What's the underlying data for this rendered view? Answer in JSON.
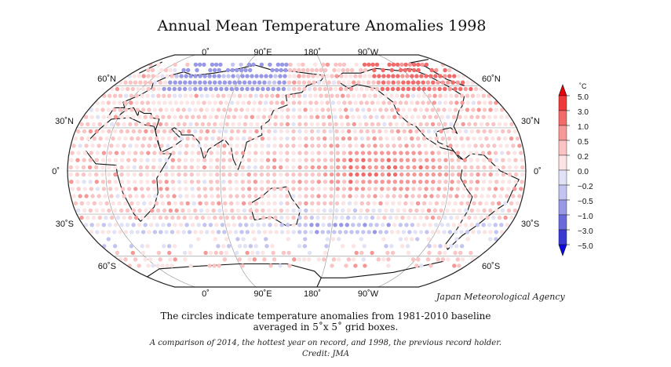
{
  "title": "Annual Mean Temperature Anomalies 1998",
  "map": {
    "projection": "Robinson",
    "top_longitude_labels": [
      "0˚",
      "90˚E",
      "180˚",
      "90˚W"
    ],
    "bottom_longitude_labels": [
      "0˚",
      "90˚E",
      "180˚",
      "90˚W"
    ],
    "left_latitude_labels": [
      "60˚N",
      "30˚N",
      "0˚",
      "30˚S",
      "60˚S"
    ],
    "right_latitude_labels": [
      "60˚N",
      "30˚N",
      "0˚",
      "30˚S",
      "60˚S"
    ],
    "grid": true,
    "legend_placement": "right"
  },
  "legend": {
    "unit": "˚C",
    "labels": [
      "5.0",
      "3.0",
      "1.0",
      "0.5",
      "0.2",
      "0.0",
      "−0.2",
      "−0.5",
      "−1.0",
      "−3.0",
      "−5.0"
    ],
    "colors": [
      "#e8000a",
      "#ee3a3a",
      "#f26a6a",
      "#f69898",
      "#fac4c4",
      "#fce4e4",
      "#e2e2f6",
      "#c4c4f0",
      "#9898e6",
      "#6a6adc",
      "#3a3ad2",
      "#0a0ae0"
    ]
  },
  "agency": "Japan Meteorological Agency",
  "caption": {
    "line1": "The circles indicate temperature anomalies from 1981-2010 baseline",
    "line2": "averaged in 5˚x 5˚ grid boxes.",
    "line3": "A comparison of 2014, the hottest year on record, and 1998, the previous record holder.",
    "line4": "Credit: JMA"
  }
}
